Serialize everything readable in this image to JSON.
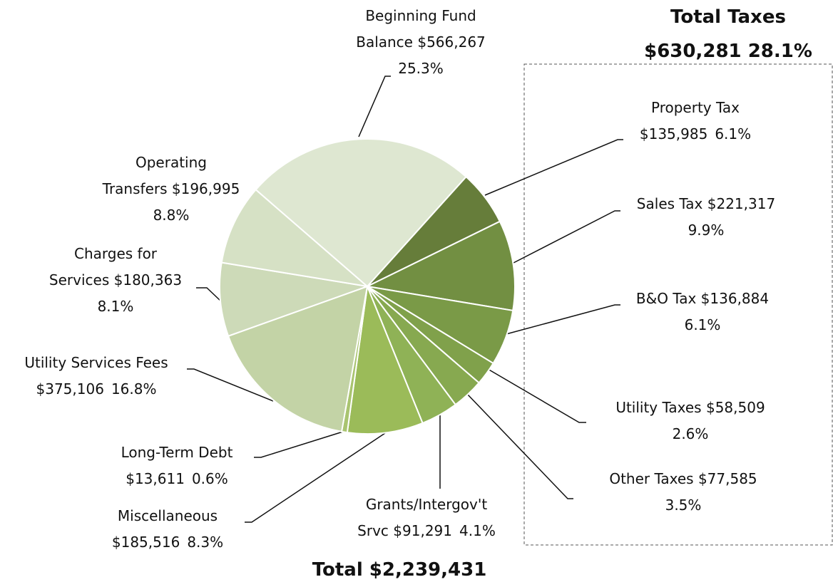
{
  "chart_data": {
    "type": "pie",
    "categories": [
      "Property Tax",
      "Sales Tax",
      "B&O Tax",
      "Utility Taxes",
      "Other Taxes",
      "Grants/Intergov't Srvc",
      "Miscellaneous",
      "Long-Term Debt",
      "Utility Services Fees",
      "Charges for Services",
      "Operating Transfers",
      "Beginning Fund Balance"
    ],
    "values": [
      135985,
      221317,
      136884,
      58509,
      77585,
      91291,
      185516,
      13611,
      375106,
      180363,
      196995,
      566267
    ],
    "value_labels": [
      "$135,985",
      "$221,317",
      "$136,884",
      "$58,509",
      "$77,585",
      "$91,291",
      "$185,516",
      "$13,611",
      "$375,106",
      "$180,363",
      "$196,995",
      "$566,267"
    ],
    "percent_labels": [
      "6.1%",
      "9.9%",
      "6.1%",
      "2.6%",
      "3.5%",
      "4.1%",
      "8.3%",
      "0.6%",
      "16.8%",
      "8.1%",
      "8.8%",
      "25.3%"
    ],
    "colors": [
      "#667d3a",
      "#728f42",
      "#7a9a47",
      "#80a14b",
      "#87a950",
      "#8fb256",
      "#9bbb59",
      "#a9c470",
      "#c3d3a6",
      "#cddab8",
      "#d6e1c5",
      "#dee7d1"
    ],
    "group_title": "Total Taxes",
    "group_value_label": "$630,281",
    "group_percent_label": "28.1%",
    "total_label": "Total",
    "total_value_label": "$2,239,431"
  }
}
